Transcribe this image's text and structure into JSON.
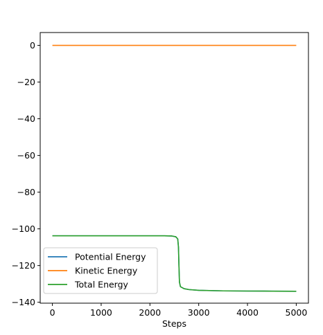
{
  "chart_data": {
    "type": "line",
    "xlabel": "Steps",
    "ylabel": "",
    "title": "",
    "xlim": [
      -250,
      5250
    ],
    "ylim": [
      -140.5,
      7.0
    ],
    "xticks": [
      0,
      1000,
      2000,
      3000,
      4000,
      5000
    ],
    "yticks": [
      0,
      -20,
      -40,
      -60,
      -80,
      -100,
      -120,
      -140
    ],
    "ytick_labels": [
      "0",
      "−20",
      "−40",
      "−60",
      "−80",
      "−100",
      "−120",
      "−140"
    ],
    "xtick_labels": [
      "0",
      "1000",
      "2000",
      "3000",
      "4000",
      "5000"
    ],
    "legend_position": "lower-left",
    "grid": false,
    "series": [
      {
        "name": "Potential Energy",
        "color": "#1f77b4",
        "points": [
          [
            0,
            -103.8
          ],
          [
            500,
            -103.8
          ],
          [
            1000,
            -103.8
          ],
          [
            1500,
            -103.8
          ],
          [
            2000,
            -103.8
          ],
          [
            2300,
            -103.8
          ],
          [
            2450,
            -103.9
          ],
          [
            2530,
            -104.3
          ],
          [
            2570,
            -105.5
          ],
          [
            2585,
            -110
          ],
          [
            2595,
            -120
          ],
          [
            2605,
            -129
          ],
          [
            2625,
            -131.5
          ],
          [
            2700,
            -132.6
          ],
          [
            2800,
            -133.1
          ],
          [
            3000,
            -133.5
          ],
          [
            3500,
            -133.8
          ],
          [
            4000,
            -133.9
          ],
          [
            4500,
            -133.95
          ],
          [
            5000,
            -134.0
          ]
        ]
      },
      {
        "name": "Kinetic Energy",
        "color": "#ff7f0e",
        "points": [
          [
            0,
            0
          ],
          [
            1000,
            0
          ],
          [
            2000,
            0
          ],
          [
            3000,
            0
          ],
          [
            4000,
            0
          ],
          [
            5000,
            0
          ]
        ]
      },
      {
        "name": "Total Energy",
        "color": "#2ca02c",
        "points": [
          [
            0,
            -103.8
          ],
          [
            500,
            -103.8
          ],
          [
            1000,
            -103.8
          ],
          [
            1500,
            -103.8
          ],
          [
            2000,
            -103.8
          ],
          [
            2300,
            -103.8
          ],
          [
            2450,
            -103.9
          ],
          [
            2530,
            -104.3
          ],
          [
            2570,
            -105.5
          ],
          [
            2585,
            -110
          ],
          [
            2595,
            -120
          ],
          [
            2605,
            -129
          ],
          [
            2625,
            -131.5
          ],
          [
            2700,
            -132.6
          ],
          [
            2800,
            -133.1
          ],
          [
            3000,
            -133.5
          ],
          [
            3500,
            -133.8
          ],
          [
            4000,
            -133.9
          ],
          [
            4500,
            -133.95
          ],
          [
            5000,
            -134.0
          ]
        ]
      }
    ]
  }
}
